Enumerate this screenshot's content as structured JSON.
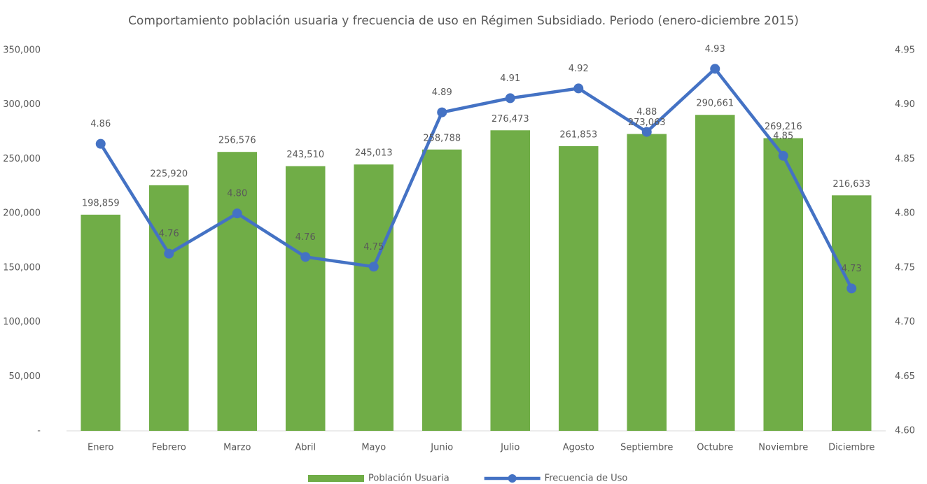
{
  "chart_data": {
    "type": "bar",
    "title": "Comportamiento población usuaria y frecuencia de uso en Régimen Subsidiado. Periodo (enero-diciembre 2015)",
    "categories": [
      "Enero",
      "Febrero",
      "Marzo",
      "Abril",
      "Mayo",
      "Junio",
      "Julio",
      "Agosto",
      "Septiembre",
      "Octubre",
      "Noviembre",
      "Diciembre"
    ],
    "series": [
      {
        "name": "Población Usuaria",
        "type": "bar",
        "color": "#70ad47",
        "values": [
          198859,
          225920,
          256576,
          243510,
          245013,
          258788,
          276473,
          261853,
          273063,
          290661,
          269216,
          216633
        ],
        "value_labels": [
          "198,859",
          "225,920",
          "256,576",
          "243,510",
          "245,013",
          "258,788",
          "276,473",
          "261,853",
          "273,063",
          "290,661",
          "269,216",
          "216,633"
        ]
      },
      {
        "name": "Frecuencia de Uso",
        "type": "line",
        "axis": "y2",
        "color": "#4472c4",
        "values": [
          4.864,
          4.763,
          4.8,
          4.76,
          4.751,
          4.893,
          4.906,
          4.915,
          4.875,
          4.933,
          4.853,
          4.731
        ],
        "value_labels": [
          "4.86",
          "4.76",
          "4.80",
          "4.76",
          "4.75",
          "4.89",
          "4.91",
          "4.92",
          "4.88",
          "4.93",
          "4.85",
          "4.73"
        ]
      }
    ],
    "ylim": [
      0,
      350000
    ],
    "yticks": [
      {
        "value": 0,
        "label": "-"
      },
      {
        "value": 50000,
        "label": "50,000"
      },
      {
        "value": 100000,
        "label": "100,000"
      },
      {
        "value": 150000,
        "label": "150,000"
      },
      {
        "value": 200000,
        "label": "200,000"
      },
      {
        "value": 250000,
        "label": "250,000"
      },
      {
        "value": 300000,
        "label": "300,000"
      },
      {
        "value": 350000,
        "label": "350,000"
      }
    ],
    "y2lim": [
      4.6,
      4.95
    ],
    "y2ticks": [
      {
        "value": 4.6,
        "label": "4.60"
      },
      4.65,
      {
        "value": 4.7,
        "label": "4.70"
      },
      4.75,
      {
        "value": 4.8,
        "label": "4.80"
      },
      4.85,
      {
        "value": 4.9,
        "label": "4.90"
      },
      4.95
    ],
    "grid": false,
    "legend": "bottom"
  }
}
